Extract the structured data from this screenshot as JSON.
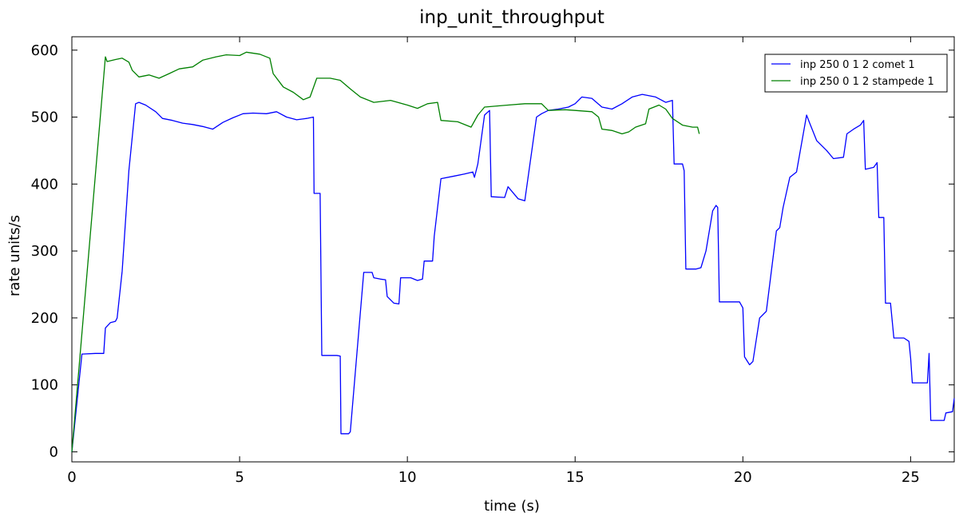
{
  "chart_data": {
    "type": "line",
    "title": "inp_unit_throughput",
    "xlabel": "time (s)",
    "ylabel": "rate units/s",
    "xlim": [
      0,
      26.3
    ],
    "ylim": [
      -15,
      620
    ],
    "xticks": [
      0,
      5,
      10,
      15,
      20,
      25
    ],
    "yticks": [
      0,
      100,
      200,
      300,
      400,
      500,
      600
    ],
    "grid": false,
    "legend": "top-right",
    "series": [
      {
        "name": "inp 250 0 1 2 comet 1",
        "color": "#0000ff",
        "points": [
          [
            0,
            0
          ],
          [
            0.3,
            146
          ],
          [
            0.7,
            147
          ],
          [
            0.95,
            147
          ],
          [
            1.0,
            185
          ],
          [
            1.15,
            193
          ],
          [
            1.3,
            195
          ],
          [
            1.35,
            200
          ],
          [
            1.5,
            270
          ],
          [
            1.7,
            420
          ],
          [
            1.9,
            520
          ],
          [
            2.0,
            522
          ],
          [
            2.2,
            518
          ],
          [
            2.5,
            508
          ],
          [
            2.7,
            498
          ],
          [
            3.0,
            495
          ],
          [
            3.3,
            491
          ],
          [
            3.6,
            489
          ],
          [
            3.9,
            486
          ],
          [
            4.2,
            482
          ],
          [
            4.5,
            492
          ],
          [
            4.8,
            499
          ],
          [
            5.1,
            505
          ],
          [
            5.4,
            506
          ],
          [
            5.8,
            505
          ],
          [
            6.1,
            508
          ],
          [
            6.4,
            500
          ],
          [
            6.7,
            496
          ],
          [
            7.0,
            498
          ],
          [
            7.2,
            500
          ],
          [
            7.22,
            386
          ],
          [
            7.4,
            386
          ],
          [
            7.45,
            144
          ],
          [
            7.9,
            144
          ],
          [
            8.0,
            143
          ],
          [
            8.02,
            27
          ],
          [
            8.25,
            27
          ],
          [
            8.3,
            30
          ],
          [
            8.7,
            268
          ],
          [
            8.95,
            268
          ],
          [
            9.0,
            260
          ],
          [
            9.2,
            258
          ],
          [
            9.35,
            257
          ],
          [
            9.4,
            232
          ],
          [
            9.6,
            222
          ],
          [
            9.75,
            221
          ],
          [
            9.8,
            260
          ],
          [
            10.1,
            260
          ],
          [
            10.3,
            256
          ],
          [
            10.45,
            258
          ],
          [
            10.5,
            285
          ],
          [
            10.75,
            285
          ],
          [
            10.8,
            322
          ],
          [
            11.0,
            408
          ],
          [
            11.4,
            412
          ],
          [
            11.7,
            415
          ],
          [
            11.95,
            418
          ],
          [
            12.0,
            410
          ],
          [
            12.1,
            430
          ],
          [
            12.3,
            503
          ],
          [
            12.45,
            510
          ],
          [
            12.5,
            381
          ],
          [
            12.9,
            380
          ],
          [
            13.0,
            396
          ],
          [
            13.1,
            390
          ],
          [
            13.3,
            378
          ],
          [
            13.5,
            375
          ],
          [
            13.85,
            500
          ],
          [
            14.0,
            505
          ],
          [
            14.2,
            510
          ],
          [
            14.5,
            512
          ],
          [
            14.8,
            515
          ],
          [
            15.0,
            520
          ],
          [
            15.2,
            530
          ],
          [
            15.5,
            528
          ],
          [
            15.8,
            515
          ],
          [
            16.1,
            512
          ],
          [
            16.4,
            520
          ],
          [
            16.7,
            530
          ],
          [
            17.0,
            534
          ],
          [
            17.4,
            530
          ],
          [
            17.7,
            522
          ],
          [
            17.9,
            525
          ],
          [
            17.95,
            430
          ],
          [
            18.2,
            430
          ],
          [
            18.25,
            420
          ],
          [
            18.3,
            273
          ],
          [
            18.6,
            273
          ],
          [
            18.75,
            275
          ],
          [
            18.9,
            300
          ],
          [
            19.1,
            360
          ],
          [
            19.2,
            368
          ],
          [
            19.25,
            365
          ],
          [
            19.3,
            224
          ],
          [
            19.9,
            224
          ],
          [
            20.0,
            215
          ],
          [
            20.05,
            142
          ],
          [
            20.2,
            130
          ],
          [
            20.3,
            135
          ],
          [
            20.5,
            200
          ],
          [
            20.7,
            210
          ],
          [
            21.0,
            330
          ],
          [
            21.1,
            335
          ],
          [
            21.2,
            365
          ],
          [
            21.4,
            410
          ],
          [
            21.6,
            418
          ],
          [
            21.9,
            503
          ],
          [
            22.0,
            490
          ],
          [
            22.2,
            465
          ],
          [
            22.5,
            450
          ],
          [
            22.7,
            438
          ],
          [
            23.0,
            440
          ],
          [
            23.1,
            475
          ],
          [
            23.3,
            482
          ],
          [
            23.5,
            488
          ],
          [
            23.6,
            495
          ],
          [
            23.65,
            422
          ],
          [
            23.9,
            425
          ],
          [
            24.0,
            432
          ],
          [
            24.05,
            350
          ],
          [
            24.2,
            350
          ],
          [
            24.25,
            222
          ],
          [
            24.4,
            222
          ],
          [
            24.5,
            170
          ],
          [
            24.8,
            170
          ],
          [
            24.95,
            165
          ],
          [
            25.0,
            140
          ],
          [
            25.05,
            103
          ],
          [
            25.5,
            103
          ],
          [
            25.55,
            147
          ],
          [
            25.6,
            47
          ],
          [
            26.0,
            47
          ],
          [
            26.05,
            58
          ],
          [
            26.25,
            60
          ],
          [
            26.3,
            80
          ]
        ]
      },
      {
        "name": "inp 250 0 1 2 stampede 1",
        "color": "#008000",
        "points": [
          [
            0,
            0
          ],
          [
            1.0,
            590
          ],
          [
            1.05,
            583
          ],
          [
            1.3,
            586
          ],
          [
            1.5,
            588
          ],
          [
            1.7,
            582
          ],
          [
            1.8,
            570
          ],
          [
            2.0,
            560
          ],
          [
            2.3,
            563
          ],
          [
            2.6,
            558
          ],
          [
            2.9,
            565
          ],
          [
            3.2,
            572
          ],
          [
            3.6,
            575
          ],
          [
            3.9,
            585
          ],
          [
            4.3,
            590
          ],
          [
            4.6,
            593
          ],
          [
            5.0,
            592
          ],
          [
            5.2,
            597
          ],
          [
            5.6,
            594
          ],
          [
            5.9,
            588
          ],
          [
            6.0,
            565
          ],
          [
            6.3,
            545
          ],
          [
            6.6,
            537
          ],
          [
            6.9,
            526
          ],
          [
            7.1,
            530
          ],
          [
            7.3,
            558
          ],
          [
            7.7,
            558
          ],
          [
            8.0,
            555
          ],
          [
            8.3,
            542
          ],
          [
            8.6,
            530
          ],
          [
            9.0,
            522
          ],
          [
            9.5,
            525
          ],
          [
            10.0,
            518
          ],
          [
            10.3,
            513
          ],
          [
            10.6,
            520
          ],
          [
            10.9,
            522
          ],
          [
            11.0,
            495
          ],
          [
            11.5,
            493
          ],
          [
            11.9,
            485
          ],
          [
            12.1,
            503
          ],
          [
            12.3,
            515
          ],
          [
            13.0,
            518
          ],
          [
            13.5,
            520
          ],
          [
            14.0,
            520
          ],
          [
            14.2,
            510
          ],
          [
            14.7,
            511
          ],
          [
            15.0,
            510
          ],
          [
            15.5,
            508
          ],
          [
            15.7,
            500
          ],
          [
            15.8,
            482
          ],
          [
            16.1,
            480
          ],
          [
            16.4,
            475
          ],
          [
            16.6,
            478
          ],
          [
            16.8,
            485
          ],
          [
            17.1,
            490
          ],
          [
            17.2,
            512
          ],
          [
            17.5,
            518
          ],
          [
            17.7,
            512
          ],
          [
            17.9,
            498
          ],
          [
            18.2,
            488
          ],
          [
            18.5,
            485
          ],
          [
            18.65,
            485
          ],
          [
            18.7,
            475
          ]
        ]
      }
    ]
  }
}
